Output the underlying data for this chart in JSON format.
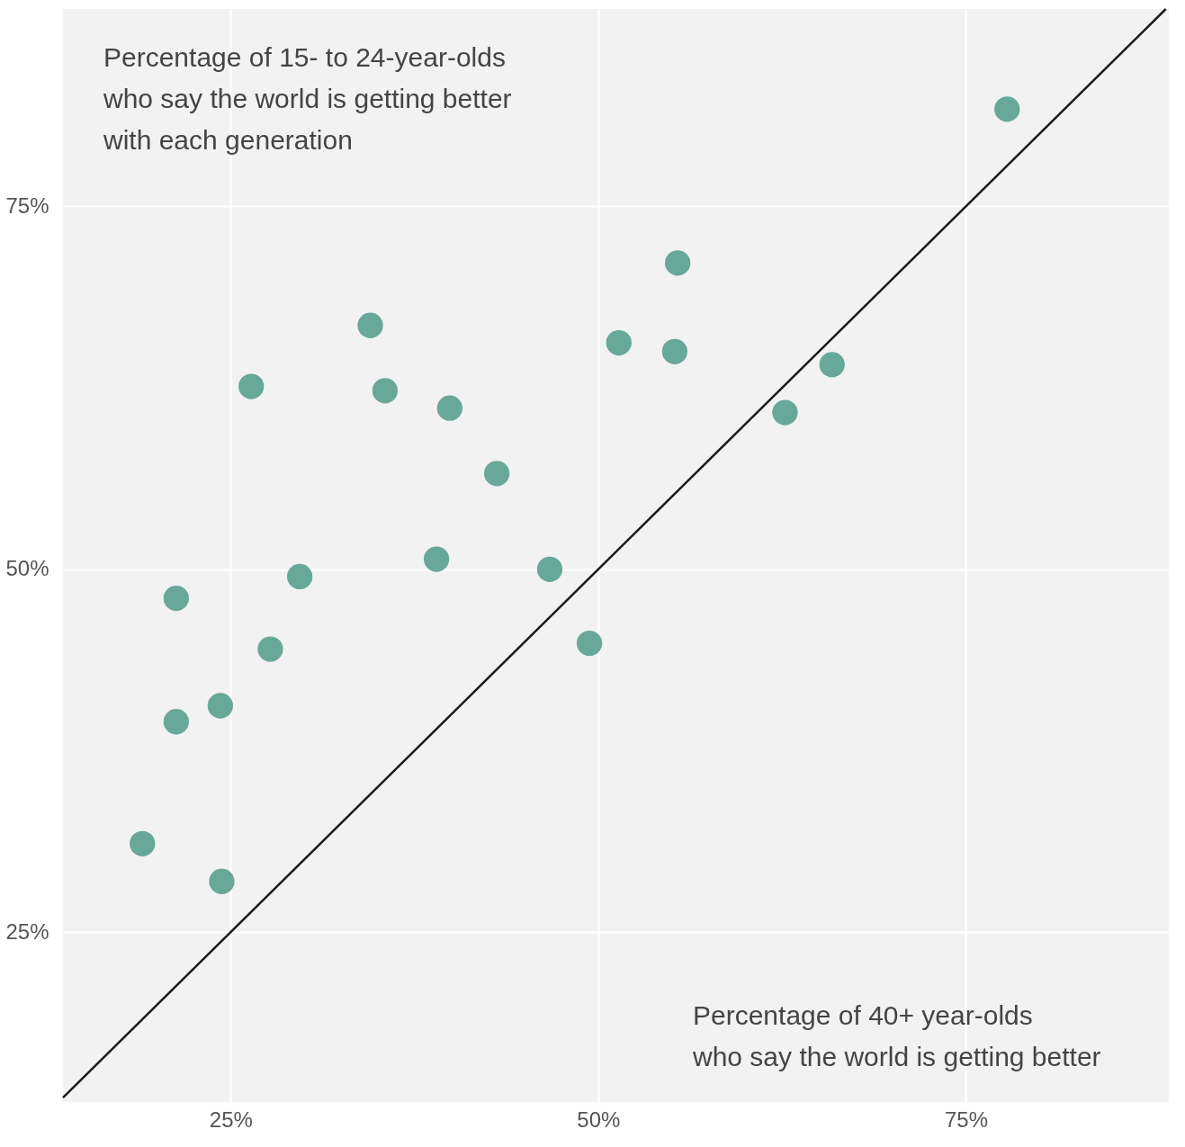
{
  "chart_data": {
    "type": "scatter",
    "xlim": [
      13.6,
      88.8
    ],
    "ylim": [
      13.3,
      88.6
    ],
    "xticks": [
      {
        "value": 25,
        "label": "25%"
      },
      {
        "value": 50,
        "label": "50%"
      },
      {
        "value": 75,
        "label": "75%"
      }
    ],
    "yticks": [
      {
        "value": 25,
        "label": "25%"
      },
      {
        "value": 50,
        "label": "50%"
      },
      {
        "value": 75,
        "label": "75%"
      }
    ],
    "grid": true,
    "series": [
      {
        "type": "line",
        "color": "#1a1a1a",
        "line_style": "solid",
        "x": [
          13.6,
          88.6
        ],
        "values": [
          13.6,
          88.6
        ]
      },
      {
        "color": "#68a898",
        "marker": "circle",
        "x": [
          77.8,
          55.4,
          34.5,
          51.4,
          55.2,
          65.9,
          26.4,
          35.5,
          39.9,
          62.7,
          43.1,
          39.0,
          46.7,
          29.7,
          21.3,
          49.4,
          27.7,
          24.3,
          21.3,
          19.0,
          24.4
        ],
        "values": [
          81.7,
          71.1,
          66.8,
          65.6,
          65.0,
          64.1,
          62.6,
          62.3,
          61.1,
          60.8,
          56.6,
          50.7,
          50.0,
          49.5,
          48.0,
          44.9,
          44.5,
          40.6,
          39.5,
          31.1,
          28.5
        ]
      }
    ],
    "annotations": [
      "Percentage of 15- to 24-year-olds\nwho say the world is getting better\nwith each generation",
      "Percentage of 40+ year-olds\nwho say the world is getting better"
    ]
  }
}
